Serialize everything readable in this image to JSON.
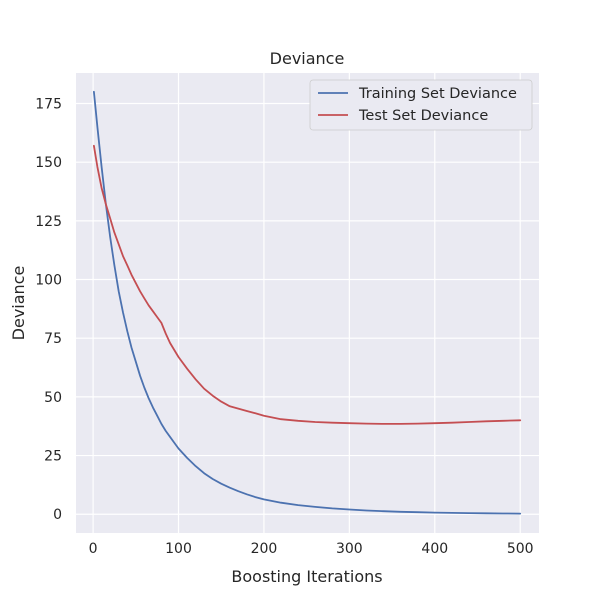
{
  "chart_data": {
    "type": "line",
    "title": "Deviance",
    "xlabel": "Boosting Iterations",
    "ylabel": "Deviance",
    "xlim": [
      -20,
      522
    ],
    "ylim": [
      -8,
      188
    ],
    "xticks": [
      0,
      100,
      200,
      300,
      400,
      500
    ],
    "yticks": [
      0,
      25,
      50,
      75,
      100,
      125,
      150,
      175
    ],
    "grid": true,
    "legend_position": "top-right",
    "colors": {
      "background": "#eaeaf2",
      "grid": "#ffffff"
    },
    "series": [
      {
        "name": "Training Set Deviance",
        "color": "#4c72b0",
        "x": [
          1,
          5,
          10,
          15,
          20,
          25,
          30,
          35,
          40,
          45,
          50,
          55,
          60,
          65,
          70,
          75,
          80,
          85,
          90,
          95,
          100,
          110,
          120,
          130,
          140,
          150,
          160,
          170,
          180,
          190,
          200,
          220,
          240,
          260,
          280,
          300,
          320,
          340,
          360,
          380,
          400,
          420,
          440,
          460,
          480,
          500
        ],
        "y": [
          180,
          165,
          148,
          132,
          118,
          106,
          95,
          86,
          78,
          71,
          65,
          59,
          54,
          49.5,
          45.5,
          42,
          38.5,
          35.5,
          33,
          30.5,
          28,
          24,
          20.5,
          17.5,
          15,
          13,
          11.3,
          9.8,
          8.5,
          7.3,
          6.3,
          4.9,
          3.9,
          3.1,
          2.5,
          2,
          1.6,
          1.3,
          1.05,
          0.85,
          0.7,
          0.57,
          0.47,
          0.38,
          0.31,
          0.25
        ]
      },
      {
        "name": "Test Set Deviance",
        "color": "#c44e52",
        "x": [
          1,
          5,
          10,
          15,
          20,
          25,
          30,
          35,
          40,
          45,
          50,
          55,
          60,
          65,
          70,
          75,
          80,
          85,
          90,
          95,
          100,
          110,
          120,
          130,
          140,
          150,
          160,
          170,
          180,
          190,
          200,
          220,
          240,
          260,
          280,
          300,
          320,
          340,
          360,
          380,
          400,
          420,
          440,
          460,
          480,
          500
        ],
        "y": [
          157,
          148,
          139,
          132,
          126,
          120,
          115,
          110,
          106,
          102,
          98.5,
          95,
          92,
          89,
          86.5,
          84,
          81.5,
          77,
          73,
          70,
          67,
          62,
          57.5,
          53.5,
          50.5,
          48,
          46,
          45,
          44,
          43,
          42,
          40.5,
          39.8,
          39.3,
          39,
          38.8,
          38.6,
          38.5,
          38.5,
          38.6,
          38.8,
          39,
          39.3,
          39.6,
          39.8,
          40
        ]
      }
    ]
  }
}
